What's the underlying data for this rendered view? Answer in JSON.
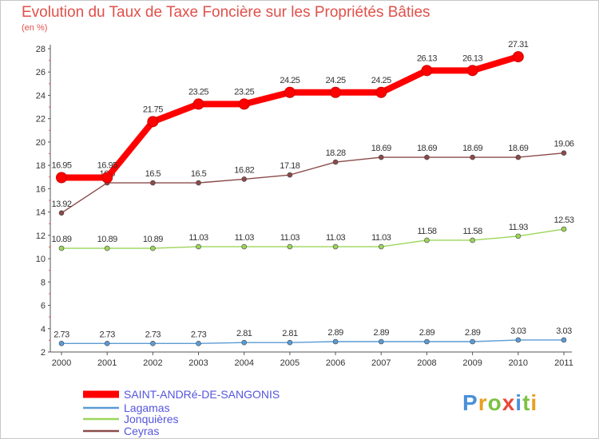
{
  "chart_data": {
    "type": "line",
    "title": "Evolution du Taux de Taxe Foncière sur les Propriétés Bâties",
    "ylabel": "(en %)",
    "xlabel": "",
    "ylim": [
      2,
      28
    ],
    "yticks": [
      "2",
      "4",
      "6",
      "8",
      "10",
      "12",
      "14",
      "16",
      "18",
      "20",
      "22",
      "24",
      "26",
      "28"
    ],
    "categories": [
      "2000",
      "2001",
      "2002",
      "2003",
      "2004",
      "2005",
      "2006",
      "2007",
      "2008",
      "2009",
      "2010",
      "2011"
    ],
    "grid": false,
    "legend_position": "bottom-left",
    "series": [
      {
        "name": "SAINT-ANDRé-DE-SANGONIS",
        "color": "#ff0000",
        "values": [
          16.95,
          16.95,
          21.75,
          23.25,
          23.25,
          24.25,
          24.25,
          24.25,
          26.13,
          26.13,
          27.31,
          null
        ],
        "labels": [
          "16.95",
          "16.95",
          "21.75",
          "23.25",
          "23.25",
          "24.25",
          "24.25",
          "24.25",
          "26.13",
          "26.13",
          "27.31",
          ""
        ]
      },
      {
        "name": "Lagamas",
        "color": "#5b9bd5",
        "values": [
          2.73,
          2.73,
          2.73,
          2.73,
          2.81,
          2.81,
          2.89,
          2.89,
          2.89,
          2.89,
          3.03,
          3.03
        ],
        "labels": [
          "2.73",
          "2.73",
          "2.73",
          "2.73",
          "2.81",
          "2.81",
          "2.89",
          "2.89",
          "2.89",
          "2.89",
          "3.03",
          "3.03"
        ]
      },
      {
        "name": "Jonquières",
        "color": "#9cd55a",
        "values": [
          10.89,
          10.89,
          10.89,
          11.03,
          11.03,
          11.03,
          11.03,
          11.03,
          11.58,
          11.58,
          11.93,
          12.53
        ],
        "labels": [
          "10.89",
          "10.89",
          "10.89",
          "11.03",
          "11.03",
          "11.03",
          "11.03",
          "11.03",
          "11.58",
          "11.58",
          "11.93",
          "12.53"
        ]
      },
      {
        "name": "Ceyras",
        "color": "#8b4a4a",
        "values": [
          13.92,
          16.5,
          16.5,
          16.5,
          16.82,
          17.18,
          18.28,
          18.69,
          18.69,
          18.69,
          18.69,
          19.06
        ],
        "labels": [
          "13.92",
          "16.5",
          "16.5",
          "16.5",
          "16.82",
          "17.18",
          "18.28",
          "18.69",
          "18.69",
          "18.69",
          "18.69",
          "19.06"
        ]
      }
    ]
  },
  "logo": {
    "letters": [
      "P",
      "r",
      "o",
      "x",
      "i",
      "t",
      "i"
    ],
    "colors": [
      "#4a90d9",
      "#e8a020",
      "#7cc242",
      "#e84a3a",
      "#4a90d9",
      "#7cc242",
      "#e8a020"
    ]
  }
}
